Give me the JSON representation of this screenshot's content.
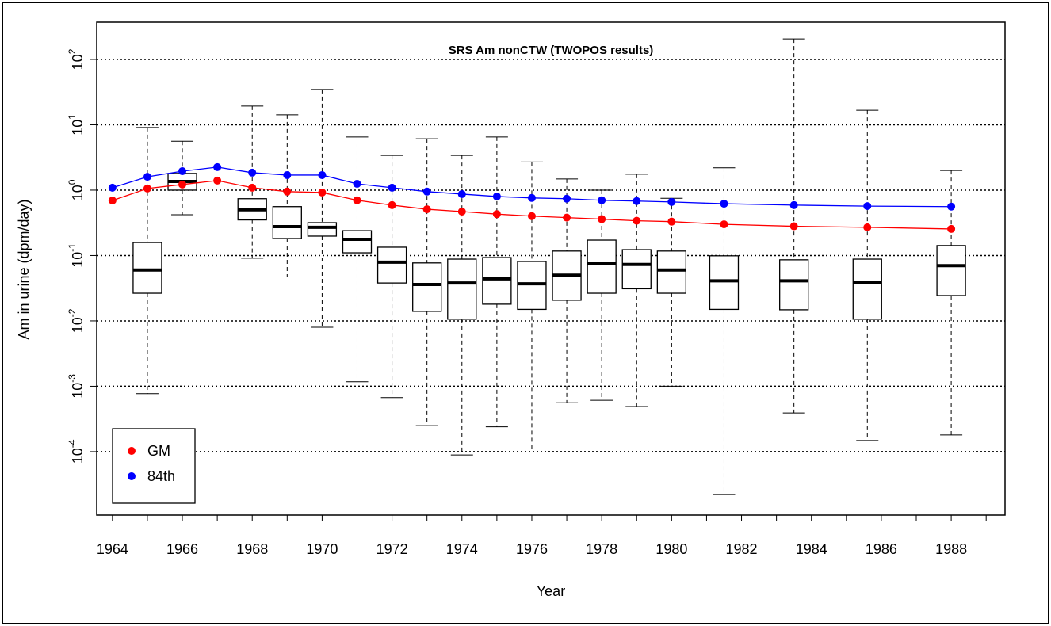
{
  "chart_data": {
    "type": "boxplot",
    "title": "SRS Am nonCTW (TWOPOS results)",
    "xlabel": "Year",
    "ylabel": "Am in urine (dpm/day)",
    "xlim": [
      1963.55,
      1989.54
    ],
    "xticks": [
      1964,
      1966,
      1968,
      1970,
      1972,
      1974,
      1976,
      1978,
      1980,
      1982,
      1984,
      1986,
      1988
    ],
    "xminor_ticks": [
      1965,
      1967,
      1969,
      1971,
      1973,
      1975,
      1977,
      1979,
      1981,
      1983,
      1985,
      1987,
      1989
    ],
    "ylim": [
      1.07e-05,
      371
    ],
    "log_y": true,
    "grid": true,
    "yticks": [
      {
        "value": 0.0001,
        "label": "10",
        "exponent": "-4"
      },
      {
        "value": 0.001,
        "label": "10",
        "exponent": "-3"
      },
      {
        "value": 0.01,
        "label": "10",
        "exponent": "-2"
      },
      {
        "value": 0.1,
        "label": "10",
        "exponent": "-1"
      },
      {
        "value": 1,
        "label": "10",
        "exponent": "0"
      },
      {
        "value": 10,
        "label": "10",
        "exponent": "1"
      },
      {
        "value": 100,
        "label": "10",
        "exponent": "2"
      }
    ],
    "boxes": {
      "x": [
        1965,
        1966,
        1968,
        1969,
        1970,
        1971,
        1972,
        1973,
        1974,
        1975,
        1976,
        1977,
        1978,
        1979,
        1980,
        1981.5,
        1983.5,
        1985.6,
        1988
      ],
      "whisker_low": [
        0.00077,
        0.42,
        0.091,
        0.047,
        0.008,
        0.00117,
        0.00067,
        0.00025,
        8.9e-05,
        0.00024,
        0.00011,
        0.00056,
        0.00061,
        0.00049,
        0.001,
        2.2e-05,
        0.00039,
        0.000148,
        0.00018
      ],
      "q1": [
        0.0265,
        1.0,
        0.35,
        0.182,
        0.198,
        0.11,
        0.038,
        0.014,
        0.0106,
        0.018,
        0.015,
        0.0207,
        0.0265,
        0.031,
        0.0265,
        0.015,
        0.0148,
        0.0106,
        0.0244
      ],
      "median": [
        0.06,
        1.36,
        0.5,
        0.277,
        0.27,
        0.177,
        0.079,
        0.036,
        0.038,
        0.044,
        0.037,
        0.05,
        0.0746,
        0.073,
        0.06,
        0.041,
        0.041,
        0.039,
        0.07
      ],
      "q3": [
        0.158,
        1.8,
        0.74,
        0.56,
        0.318,
        0.24,
        0.134,
        0.077,
        0.088,
        0.093,
        0.081,
        0.117,
        0.172,
        0.123,
        0.117,
        0.099,
        0.086,
        0.088,
        0.142
      ],
      "whisker_high": [
        9.1,
        5.6,
        19.3,
        14.2,
        34.7,
        6.5,
        3.4,
        6.1,
        3.4,
        6.5,
        2.7,
        1.48,
        1.0,
        1.75,
        0.75,
        2.2,
        206,
        16.7,
        2.0
      ]
    },
    "series": [
      {
        "name": "GM",
        "color": "#ff0000",
        "x": [
          1964,
          1965,
          1966,
          1967,
          1968,
          1969,
          1970,
          1971,
          1972,
          1973,
          1974,
          1975,
          1976,
          1977,
          1978,
          1979,
          1980,
          1981.5,
          1983.5,
          1985.6,
          1988
        ],
        "values": [
          0.695,
          1.06,
          1.22,
          1.4,
          1.09,
          0.95,
          0.92,
          0.7,
          0.59,
          0.51,
          0.47,
          0.43,
          0.4,
          0.38,
          0.36,
          0.34,
          0.33,
          0.3,
          0.28,
          0.27,
          0.255
        ]
      },
      {
        "name": "84th",
        "color": "#0000ff",
        "x": [
          1964,
          1965,
          1966,
          1967,
          1968,
          1969,
          1970,
          1971,
          1972,
          1973,
          1974,
          1975,
          1976,
          1977,
          1978,
          1979,
          1980,
          1981.5,
          1983.5,
          1985.6,
          1988
        ],
        "values": [
          1.09,
          1.6,
          1.95,
          2.25,
          1.85,
          1.7,
          1.7,
          1.25,
          1.09,
          0.95,
          0.87,
          0.8,
          0.76,
          0.74,
          0.7,
          0.68,
          0.66,
          0.62,
          0.59,
          0.57,
          0.56
        ]
      }
    ],
    "legend": "bottomleft"
  }
}
